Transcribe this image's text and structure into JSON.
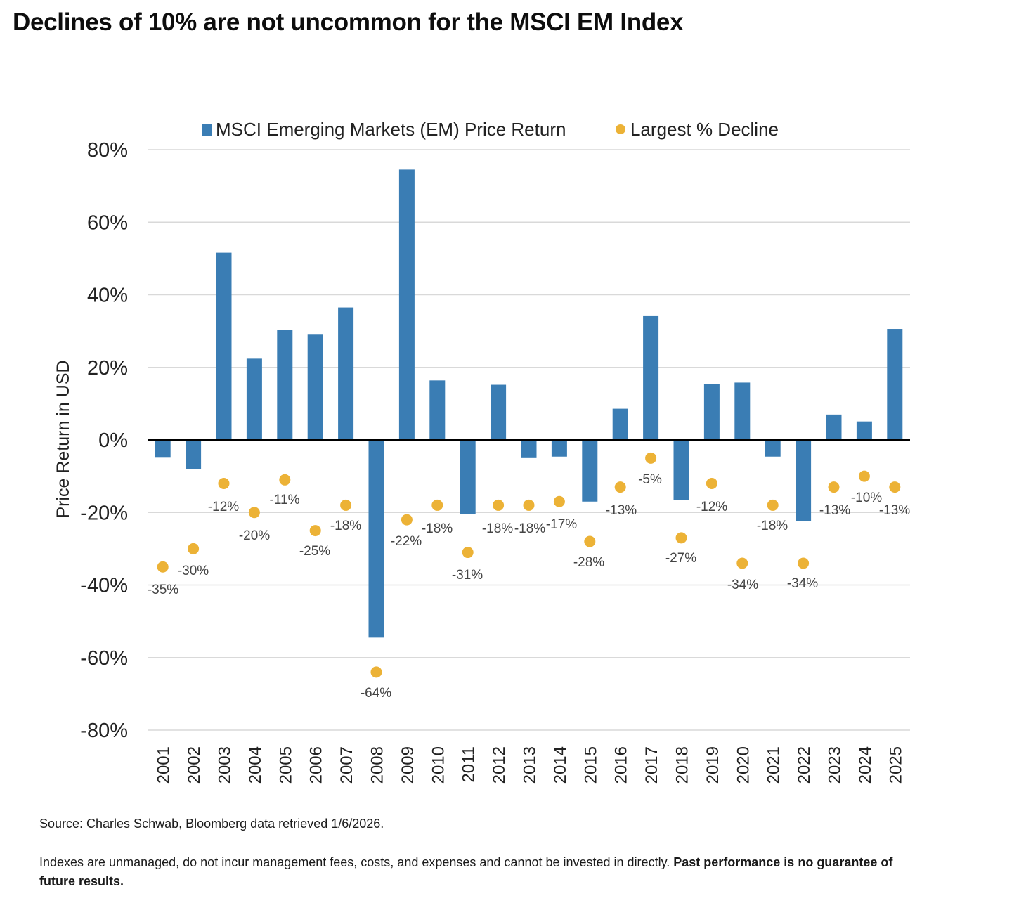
{
  "page": {
    "title": "Declines of 10% are not uncommon for the MSCI EM Index",
    "source": "Source: Charles Schwab, Bloomberg data retrieved 1/6/2026.",
    "disclaimer_text": "Indexes are unmanaged, do not incur management fees, costs, and expenses and cannot be invested in directly.",
    "disclaimer_bold": "Past performance is no guarantee of future results."
  },
  "colors": {
    "bar": "#3a7db4",
    "dot": "#ecb236",
    "grid": "#d9d9d9",
    "zero_line": "#000000"
  },
  "chart_data": {
    "type": "bar",
    "ylabel": "Price Return in USD",
    "ylim": [
      -80,
      80
    ],
    "yticks": [
      80,
      60,
      40,
      20,
      0,
      -20,
      -40,
      -60,
      -80
    ],
    "ytick_labels": [
      "80%",
      "60%",
      "40%",
      "20%",
      "0%",
      "-20%",
      "-40%",
      "-60%",
      "-80%"
    ],
    "categories": [
      "2001",
      "2002",
      "2003",
      "2004",
      "2005",
      "2006",
      "2007",
      "2008",
      "2009",
      "2010",
      "2011",
      "2012",
      "2013",
      "2014",
      "2015",
      "2016",
      "2017",
      "2018",
      "2019",
      "2020",
      "2021",
      "2022",
      "2023",
      "2024",
      "2025"
    ],
    "series": [
      {
        "name": "MSCI Emerging Markets (EM) Price Return",
        "kind": "bar",
        "values": [
          -4.9,
          -8.0,
          51.6,
          22.4,
          30.3,
          29.2,
          36.5,
          -54.5,
          74.5,
          16.4,
          -20.4,
          15.2,
          -5.0,
          -4.6,
          -17.0,
          8.6,
          34.3,
          -16.6,
          15.4,
          15.8,
          -4.6,
          -22.4,
          7.0,
          5.1,
          30.6
        ]
      },
      {
        "name": "Largest % Decline",
        "kind": "scatter",
        "values": [
          -35,
          -30,
          -12,
          -20,
          -11,
          -25,
          -18,
          -64,
          -22,
          -18,
          -31,
          -18,
          -18,
          -17,
          -28,
          -13,
          -5,
          -27,
          -12,
          -34,
          -18,
          -34,
          -13,
          -10,
          -13
        ],
        "labels": [
          "-35%",
          "-30%",
          "-12%",
          "-20%",
          "-11%",
          "-25%",
          "-18%",
          "-64%",
          "-22%",
          "-18%",
          "-31%",
          "-18%",
          "-18%",
          "-17%",
          "-28%",
          "-13%",
          "-5%",
          "-27%",
          "-12%",
          "-34%",
          "-18%",
          "-34%",
          "-13%",
          "-10%",
          "-13%"
        ]
      }
    ],
    "legend": [
      "MSCI Emerging Markets (EM) Price Return",
      "Largest % Decline"
    ],
    "legend_position": "top",
    "grid": true
  }
}
